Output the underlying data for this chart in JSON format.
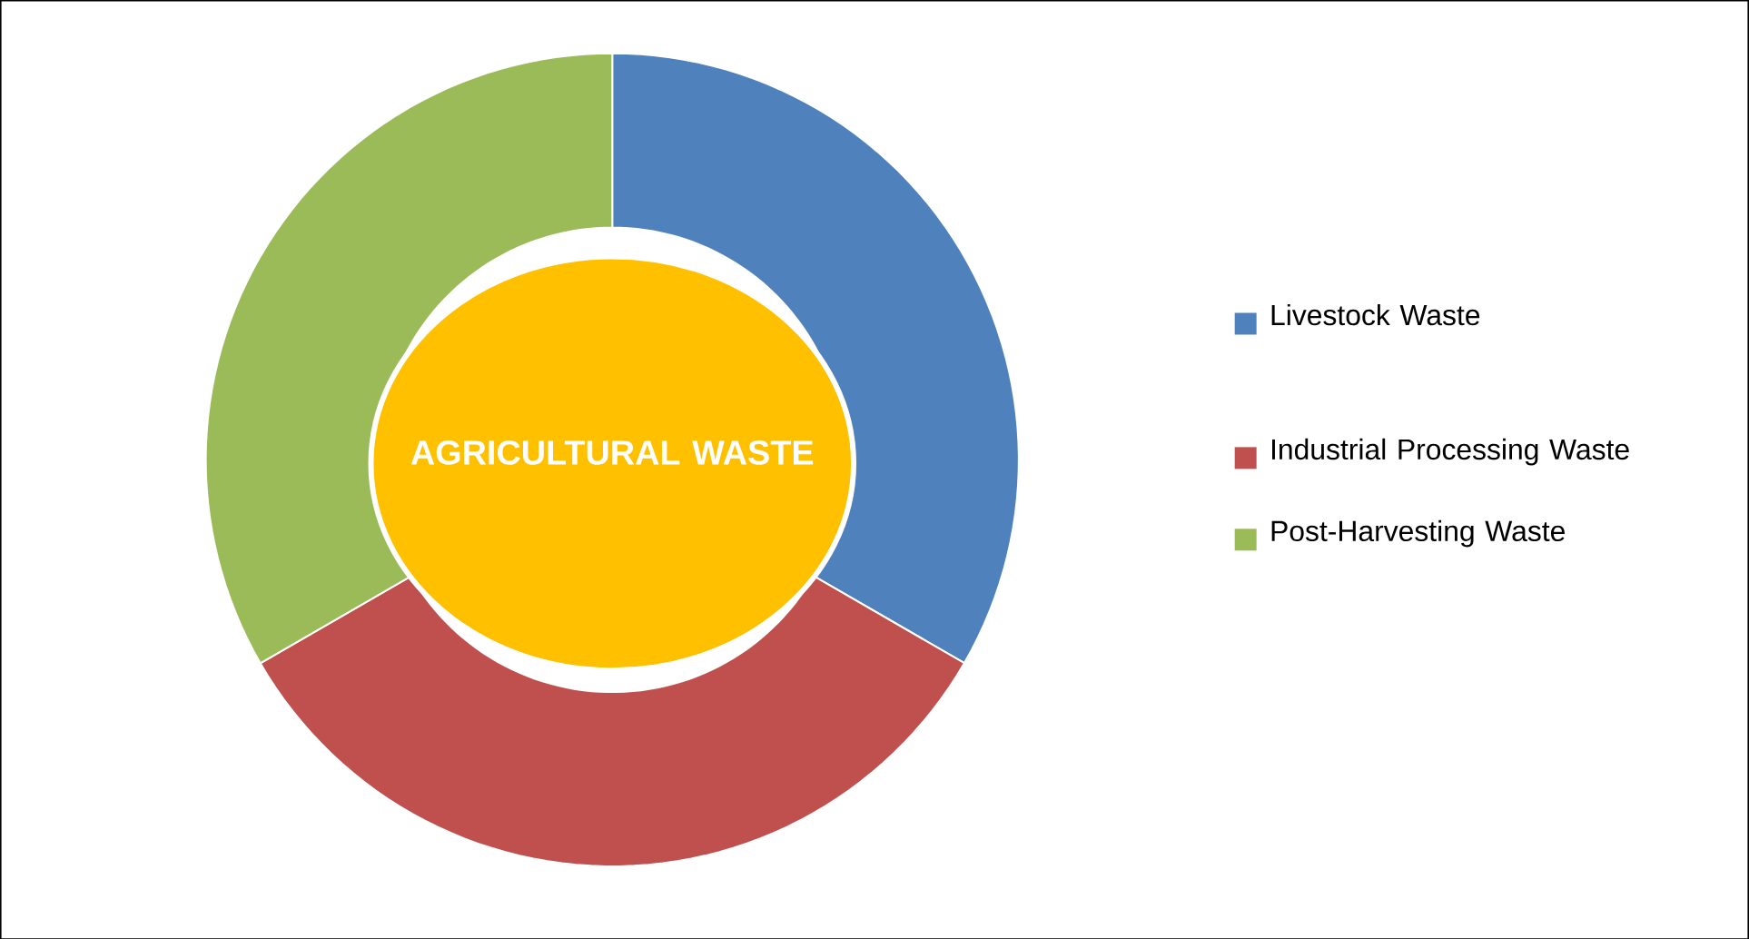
{
  "chart_data": {
    "type": "donut",
    "title": "AGRICULTURAL WASTE",
    "categories": [
      "Livestock Waste",
      "Industrial Processing Waste",
      "Post-Harvesting Waste"
    ],
    "values": [
      33.33,
      33.33,
      33.34
    ],
    "colors": [
      "#4f81bd",
      "#c0504d",
      "#9bbb59"
    ],
    "legend": "right"
  }
}
